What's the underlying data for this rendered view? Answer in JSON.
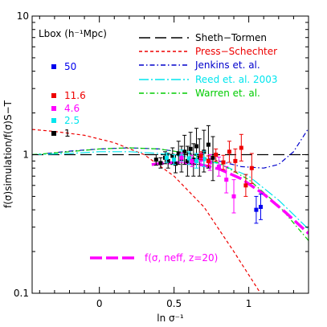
{
  "chart_data": {
    "type": "scatter",
    "xlabel": "ln σ⁻¹",
    "ylabel": "f(σ)simulation/f(σ)S−T",
    "xlim": [
      -0.45,
      1.4
    ],
    "ylim": [
      0.1,
      10
    ],
    "yscale": "log",
    "x_ticks": [
      0,
      0.5,
      1
    ],
    "x_tick_labels": [
      "0",
      "0.5",
      "1"
    ],
    "y_ticks": [
      0.1,
      1,
      10
    ],
    "y_tick_labels": [
      "0.1",
      "1",
      "10"
    ],
    "box_legend_title": "Lbox (h⁻¹Mpc)",
    "box_legend": [
      {
        "label": "50",
        "color": "#0000ee"
      },
      {
        "label": "11.6",
        "color": "#ee0000"
      },
      {
        "label": "4.6",
        "color": "#ff00ff"
      },
      {
        "label": "2.5",
        "color": "#00e5ee"
      },
      {
        "label": "1",
        "color": "#000000"
      }
    ],
    "curves": [
      {
        "name": "Sheth−Tormen",
        "color": "#000000",
        "dash": "long-dash",
        "x": [
          -0.45,
          1.4
        ],
        "y": [
          1.0,
          1.0
        ]
      },
      {
        "name": "Press−Schechter",
        "color": "#ee0000",
        "dash": "short-dash",
        "x": [
          -0.45,
          -0.3,
          -0.1,
          0.1,
          0.3,
          0.5,
          0.7,
          0.9,
          1.1
        ],
        "y": [
          1.52,
          1.47,
          1.38,
          1.22,
          1.0,
          0.7,
          0.42,
          0.2,
          0.092
        ]
      },
      {
        "name": "Jenkins et. al.",
        "color": "#0000cc",
        "dash": "dash-dot",
        "x": [
          -0.35,
          -0.2,
          0.0,
          0.2,
          0.4,
          0.6,
          0.8,
          0.95,
          1.1,
          1.2,
          1.3,
          1.4
        ],
        "y": [
          1.02,
          1.06,
          1.1,
          1.12,
          1.1,
          1.02,
          0.9,
          0.82,
          0.8,
          0.85,
          1.05,
          1.55
        ]
      },
      {
        "name": "Reed et. al. 2003",
        "color": "#00e5ee",
        "dash": "long-dash-dot",
        "x": [
          -0.45,
          -0.2,
          0.0,
          0.2,
          0.4,
          0.6,
          0.8,
          1.0,
          1.2,
          1.4
        ],
        "y": [
          1.0,
          1.02,
          1.05,
          1.05,
          1.02,
          0.96,
          0.86,
          0.7,
          0.47,
          0.29
        ]
      },
      {
        "name": "Warren et. al.",
        "color": "#00cc00",
        "dash": "dash-dot",
        "x": [
          -0.45,
          -0.2,
          0.0,
          0.2,
          0.4,
          0.6,
          0.8,
          1.0,
          1.2,
          1.4
        ],
        "y": [
          1.0,
          1.05,
          1.1,
          1.12,
          1.1,
          1.02,
          0.87,
          0.66,
          0.43,
          0.24
        ]
      },
      {
        "name": "f(σ, neff, z=20)",
        "color": "#ff00ff",
        "dash": "thick-dash",
        "x": [
          0.35,
          0.5,
          0.65,
          0.8,
          0.95,
          1.1,
          1.25,
          1.4
        ],
        "y": [
          0.85,
          0.88,
          0.86,
          0.79,
          0.67,
          0.52,
          0.38,
          0.27
        ]
      }
    ],
    "legend_entries": [
      {
        "label": "Sheth−Tormen",
        "color": "#000000",
        "dash": "long-dash"
      },
      {
        "label": "Press−Schechter",
        "color": "#ee0000",
        "dash": "short-dash"
      },
      {
        "label": "Jenkins et. al.",
        "color": "#0000cc",
        "dash": "dash-dot"
      },
      {
        "label": "Reed et. al. 2003",
        "color": "#00e5ee",
        "dash": "long-dash-dot"
      },
      {
        "label": "Warren et. al.",
        "color": "#00cc00",
        "dash": "dash-dot"
      }
    ],
    "bottom_legend": {
      "label": "f(σ, neff, z=20)",
      "color": "#ff00ff"
    },
    "series": [
      {
        "name": "1",
        "color": "#000000",
        "points": [
          {
            "x": 0.38,
            "y": 0.92,
            "lo": 0.84,
            "hi": 1.0
          },
          {
            "x": 0.41,
            "y": 0.87,
            "lo": 0.8,
            "hi": 0.95
          },
          {
            "x": 0.44,
            "y": 0.95,
            "lo": 0.86,
            "hi": 1.05
          },
          {
            "x": 0.46,
            "y": 0.9,
            "lo": 0.8,
            "hi": 1.02
          },
          {
            "x": 0.49,
            "y": 0.98,
            "lo": 0.85,
            "hi": 1.12
          },
          {
            "x": 0.51,
            "y": 0.86,
            "lo": 0.74,
            "hi": 1.0
          },
          {
            "x": 0.53,
            "y": 1.02,
            "lo": 0.85,
            "hi": 1.25
          },
          {
            "x": 0.55,
            "y": 0.93,
            "lo": 0.75,
            "hi": 1.15
          },
          {
            "x": 0.57,
            "y": 1.05,
            "lo": 0.85,
            "hi": 1.38
          },
          {
            "x": 0.59,
            "y": 0.9,
            "lo": 0.7,
            "hi": 1.15
          },
          {
            "x": 0.61,
            "y": 1.1,
            "lo": 0.85,
            "hi": 1.45
          },
          {
            "x": 0.63,
            "y": 0.92,
            "lo": 0.7,
            "hi": 1.2
          },
          {
            "x": 0.65,
            "y": 1.15,
            "lo": 0.85,
            "hi": 1.55
          },
          {
            "x": 0.67,
            "y": 0.95,
            "lo": 0.7,
            "hi": 1.3
          },
          {
            "x": 0.7,
            "y": 1.05,
            "lo": 0.75,
            "hi": 1.5
          },
          {
            "x": 0.73,
            "y": 1.18,
            "lo": 0.8,
            "hi": 1.62
          },
          {
            "x": 0.76,
            "y": 0.95,
            "lo": 0.65,
            "hi": 1.35
          }
        ]
      },
      {
        "name": "2.5",
        "color": "#00e5ee",
        "points": [
          {
            "x": 0.45,
            "y": 0.95,
            "lo": 0.88,
            "hi": 1.03
          },
          {
            "x": 0.5,
            "y": 0.92,
            "lo": 0.85,
            "hi": 1.0
          },
          {
            "x": 0.55,
            "y": 0.98,
            "lo": 0.9,
            "hi": 1.08
          },
          {
            "x": 0.6,
            "y": 0.94,
            "lo": 0.85,
            "hi": 1.05
          },
          {
            "x": 0.65,
            "y": 0.9,
            "lo": 0.8,
            "hi": 1.02
          },
          {
            "x": 0.7,
            "y": 0.93,
            "lo": 0.82,
            "hi": 1.06
          }
        ]
      },
      {
        "name": "4.6",
        "color": "#ff00ff",
        "points": [
          {
            "x": 0.55,
            "y": 0.95,
            "lo": 0.88,
            "hi": 1.03
          },
          {
            "x": 0.62,
            "y": 0.9,
            "lo": 0.82,
            "hi": 0.99
          },
          {
            "x": 0.68,
            "y": 0.92,
            "lo": 0.83,
            "hi": 1.02
          },
          {
            "x": 0.74,
            "y": 0.88,
            "lo": 0.77,
            "hi": 1.0
          },
          {
            "x": 0.8,
            "y": 0.82,
            "lo": 0.7,
            "hi": 0.96
          },
          {
            "x": 0.85,
            "y": 0.66,
            "lo": 0.53,
            "hi": 0.82
          },
          {
            "x": 0.9,
            "y": 0.5,
            "lo": 0.38,
            "hi": 0.66
          }
        ]
      },
      {
        "name": "11.6",
        "color": "#ee0000",
        "points": [
          {
            "x": 0.68,
            "y": 0.98,
            "lo": 0.92,
            "hi": 1.05
          },
          {
            "x": 0.73,
            "y": 0.9,
            "lo": 0.83,
            "hi": 0.98
          },
          {
            "x": 0.78,
            "y": 1.0,
            "lo": 0.9,
            "hi": 1.1
          },
          {
            "x": 0.83,
            "y": 0.88,
            "lo": 0.78,
            "hi": 0.99
          },
          {
            "x": 0.87,
            "y": 1.05,
            "lo": 0.88,
            "hi": 1.25
          },
          {
            "x": 0.91,
            "y": 0.9,
            "lo": 0.75,
            "hi": 1.1
          },
          {
            "x": 0.95,
            "y": 1.12,
            "lo": 0.9,
            "hi": 1.4
          },
          {
            "x": 0.98,
            "y": 0.6,
            "lo": 0.5,
            "hi": 0.72
          },
          {
            "x": 1.02,
            "y": 0.8,
            "lo": 0.62,
            "hi": 1.02
          }
        ]
      },
      {
        "name": "50",
        "color": "#0000ee",
        "points": [
          {
            "x": 1.05,
            "y": 0.4,
            "lo": 0.32,
            "hi": 0.5
          },
          {
            "x": 1.08,
            "y": 0.42,
            "lo": 0.34,
            "hi": 0.52
          }
        ]
      }
    ]
  }
}
